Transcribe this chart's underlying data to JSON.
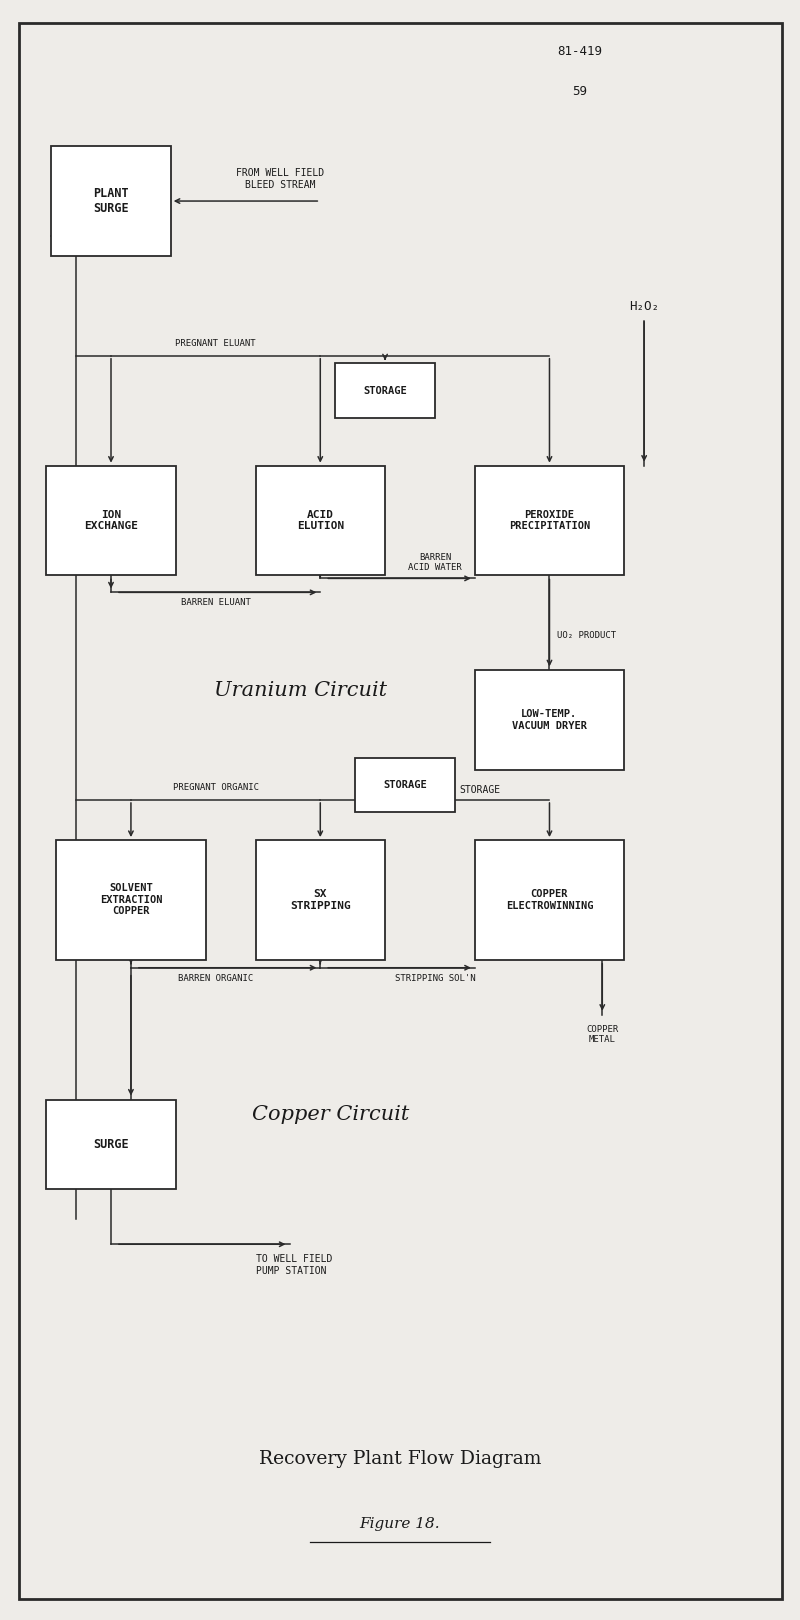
{
  "bg_color": "#eeece8",
  "border_color": "#2a2a2a",
  "text_color": "#1a1a1a",
  "fig_width": 8.0,
  "fig_height": 16.2,
  "page_ref": "81-419",
  "page_num": "59",
  "title": "Recovery Plant Flow Diagram",
  "figure_label": "Figure 18.",
  "uranium_circuit_label": "Uranium Circuit",
  "copper_circuit_label": "Copper Circuit"
}
